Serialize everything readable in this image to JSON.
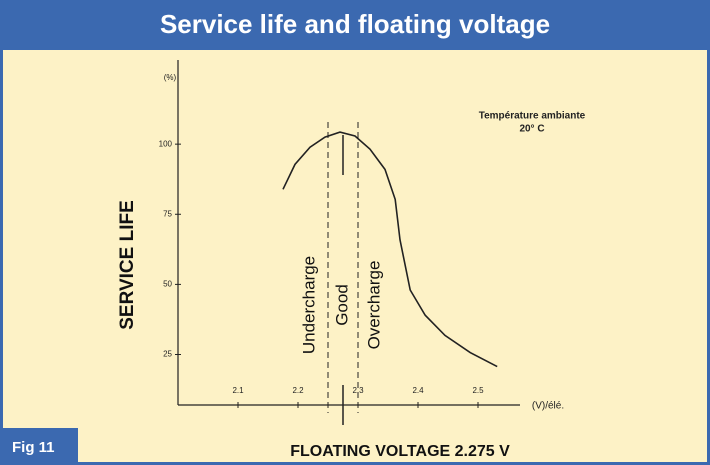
{
  "chart_data": {
    "type": "line",
    "title": "Service life and floating voltage",
    "ylabel": "SERVICE LIFE",
    "xlabel": "FLOATING VOLTAGE 2.275 V",
    "yunit": "(%)",
    "xunit": "(V)/élé.",
    "figure": "Fig 11",
    "note": [
      "Température ambiante",
      "20° C"
    ],
    "regions": [
      "Undercharge",
      "Good",
      "Overcharge"
    ],
    "vlines": [
      2.25,
      2.275,
      2.3
    ],
    "xlim": [
      2.0,
      2.57
    ],
    "ylim": [
      7,
      130
    ],
    "xticks": [
      2.1,
      2.2,
      2.3,
      2.4,
      2.5
    ],
    "yticks": [
      25,
      50,
      75,
      100
    ],
    "grid": false,
    "series": [
      {
        "name": "Service life",
        "color": "#222222",
        "x": [
          2.175,
          2.195,
          2.22,
          2.245,
          2.27,
          2.295,
          2.32,
          2.345,
          2.362,
          2.37,
          2.387,
          2.412,
          2.445,
          2.487,
          2.532
        ],
        "values": [
          83.9,
          92.8,
          98.9,
          102.5,
          104.3,
          102.9,
          98.2,
          91.0,
          80.3,
          65.9,
          48.0,
          39.0,
          31.8,
          25.7,
          20.7
        ]
      }
    ]
  }
}
